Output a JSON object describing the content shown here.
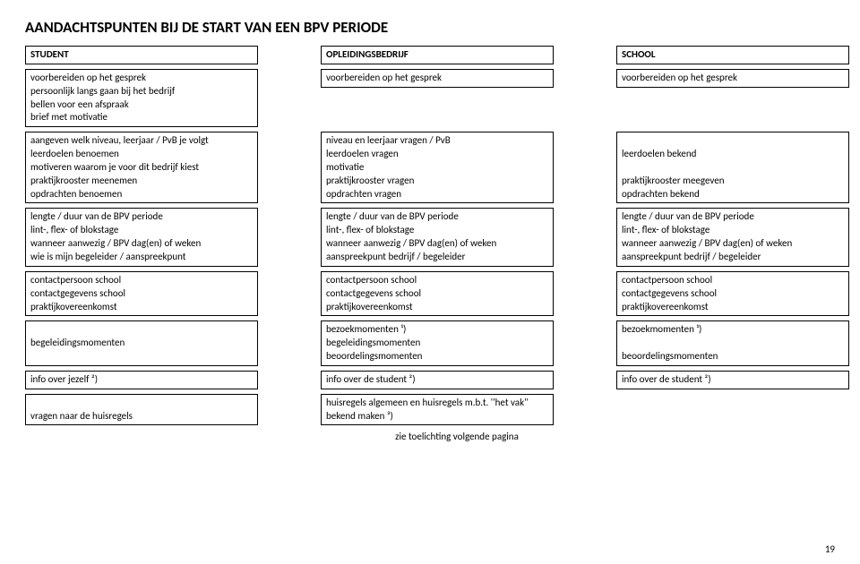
{
  "title": "AANDACHTSPUNTEN BIJ DE START VAN EEN BPV PERIODE",
  "headers": {
    "c1": "STUDENT",
    "c2": "OPLEIDINGSBEDRIJF",
    "c3": "SCHOOL"
  },
  "r1": {
    "c1": [
      "voorbereiden op het gesprek",
      "persoonlijk langs gaan bij het bedrijf",
      "bellen voor een afspraak",
      "brief met motivatie"
    ],
    "c2": [
      "voorbereiden op het gesprek"
    ],
    "c3": [
      "voorbereiden op het gesprek"
    ]
  },
  "r2": {
    "c1": [
      "aangeven welk niveau, leerjaar / PvB je volgt",
      "leerdoelen benoemen",
      "motiveren waarom je voor dit bedrijf kiest",
      "praktijkrooster meenemen",
      "opdrachten benoemen"
    ],
    "c2": [
      "niveau en leerjaar vragen / PvB",
      "leerdoelen vragen",
      "motivatie",
      "praktijkrooster vragen",
      "opdrachten vragen"
    ],
    "c3": [
      "",
      "leerdoelen bekend",
      "",
      "praktijkrooster meegeven",
      "opdrachten bekend"
    ]
  },
  "r3": {
    "c1": [
      "lengte / duur van de BPV periode",
      "lint-, flex-  of blokstage",
      "wanneer aanwezig / BPV dag(en) of weken",
      "wie is mijn begeleider / aanspreekpunt"
    ],
    "c2": [
      "lengte / duur van de BPV periode",
      "lint-, flex-  of blokstage",
      "wanneer aanwezig / BPV dag(en)  of weken",
      "aanspreekpunt bedrijf / begeleider"
    ],
    "c3": [
      "lengte / duur van de BPV periode",
      "lint-, flex- of blokstage",
      "wanneer aanwezig / BPV dag(en)  of weken",
      "aanspreekpunt bedrijf / begeleider"
    ]
  },
  "r4": {
    "c1": [
      "contactpersoon school",
      "contactgegevens school",
      "praktijkovereenkomst"
    ],
    "c2": [
      "contactpersoon school",
      "contactgegevens school",
      "praktijkovereenkomst"
    ],
    "c3": [
      "contactpersoon school",
      "contactgegevens school",
      "praktijkovereenkomst"
    ]
  },
  "r5": {
    "c1": [
      "",
      "begeleidingsmomenten",
      ""
    ],
    "c2": [
      "bezoekmomenten  ¹)",
      "begeleidingsmomenten",
      "beoordelingsmomenten"
    ],
    "c3": [
      "bezoekmomenten     ¹)",
      "",
      "beoordelingsmomenten"
    ]
  },
  "r6": {
    "c1": [
      "info over jezelf    ²)"
    ],
    "c2": [
      "info over de student    ²)"
    ],
    "c3": [
      "info over de student    ²)"
    ]
  },
  "r7": {
    "c1": [
      "",
      "vragen naar de huisregels"
    ],
    "c2": [
      "huisregels algemeen en huisregels m.b.t. ''het vak''",
      "bekend maken  ³)"
    ],
    "c3": []
  },
  "footer": "zie toelichting volgende pagina",
  "page": "19"
}
